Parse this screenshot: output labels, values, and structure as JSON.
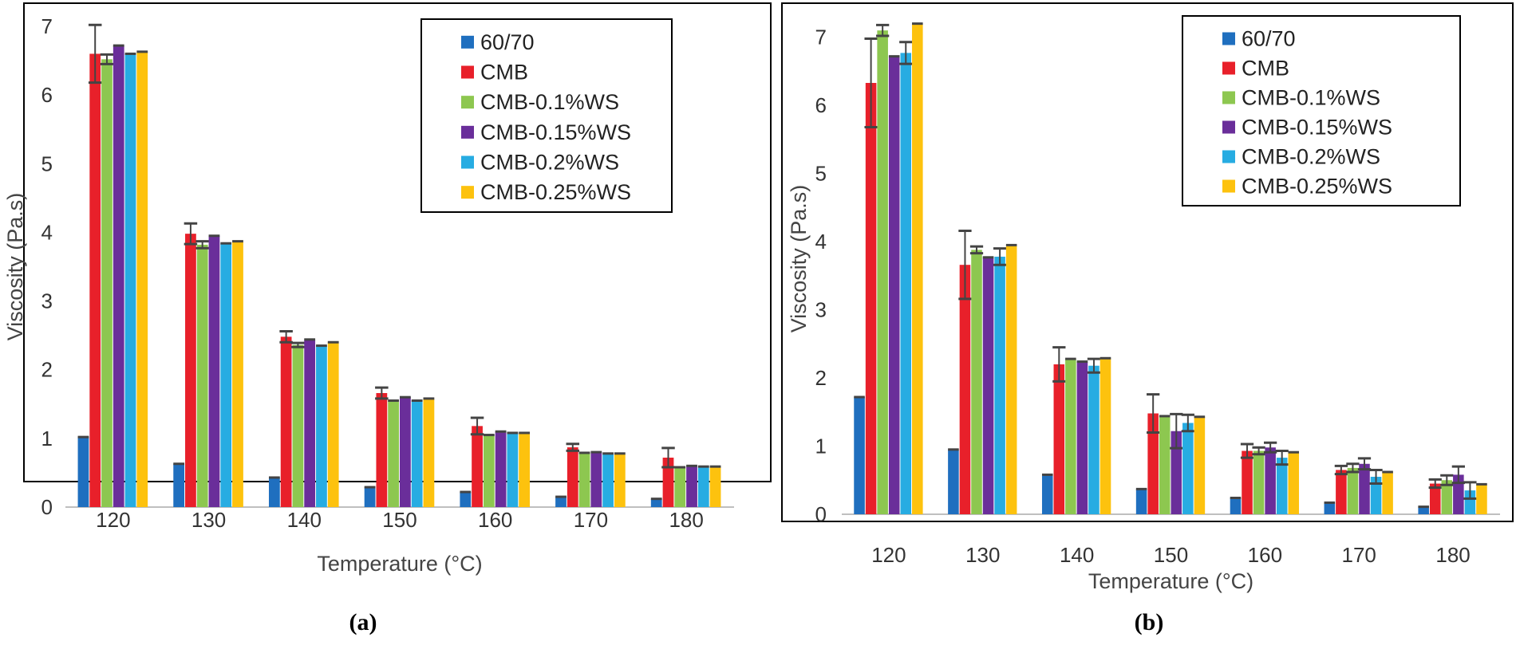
{
  "colors": {
    "60/70": "#1f6fbf",
    "CMB": "#e8202a",
    "CMB-0.1%WS": "#8dc750",
    "CMB-0.15%WS": "#6a2e9a",
    "CMB-0.2%WS": "#27ace2",
    "CMB-0.25%WS": "#fdc20e",
    "error_bar": "#444444"
  },
  "chart_data": [
    {
      "type": "bar",
      "caption": "(a)",
      "xlabel": "Temperature (°C)",
      "ylabel": "Viscosity (Pa.s)",
      "ylim": [
        0,
        7
      ],
      "yticks": [
        "0",
        "1",
        "2",
        "3",
        "4",
        "5",
        "6",
        "7"
      ],
      "categories": [
        "120",
        "130",
        "140",
        "150",
        "160",
        "170",
        "180"
      ],
      "legend_position": "top-right",
      "series": [
        {
          "name": "60/70",
          "values": [
            1.02,
            0.63,
            0.43,
            0.29,
            0.22,
            0.15,
            0.12
          ],
          "errors": [
            0.0,
            0.0,
            0.0,
            0.0,
            0.0,
            0.0,
            0.0
          ]
        },
        {
          "name": "CMB",
          "values": [
            6.6,
            3.98,
            2.48,
            1.66,
            1.18,
            0.87,
            0.72
          ],
          "errors": [
            0.42,
            0.15,
            0.08,
            0.08,
            0.12,
            0.05,
            0.14
          ]
        },
        {
          "name": "CMB-0.1%WS",
          "values": [
            6.52,
            3.82,
            2.36,
            1.55,
            1.05,
            0.79,
            0.58
          ],
          "errors": [
            0.07,
            0.05,
            0.03,
            0.0,
            0.0,
            0.0,
            0.0
          ]
        },
        {
          "name": "CMB-0.15%WS",
          "values": [
            6.72,
            3.95,
            2.44,
            1.6,
            1.1,
            0.8,
            0.6
          ],
          "errors": [
            0.0,
            0.0,
            0.0,
            0.0,
            0.0,
            0.0,
            0.0
          ]
        },
        {
          "name": "CMB-0.2%WS",
          "values": [
            6.6,
            3.84,
            2.35,
            1.55,
            1.08,
            0.78,
            0.59
          ],
          "errors": [
            0.0,
            0.0,
            0.0,
            0.0,
            0.0,
            0.0,
            0.0
          ]
        },
        {
          "name": "CMB-0.25%WS",
          "values": [
            6.63,
            3.87,
            2.4,
            1.58,
            1.08,
            0.78,
            0.59
          ],
          "errors": [
            0.0,
            0.0,
            0.0,
            0.0,
            0.0,
            0.0,
            0.0
          ]
        }
      ]
    },
    {
      "type": "bar",
      "caption": "(b)",
      "xlabel": "Temperature (°C)",
      "ylabel": "Viscosity (Pa.s)",
      "ylim": [
        0,
        7.5
      ],
      "yticks": [
        "0",
        "1",
        "2",
        "3",
        "4",
        "5",
        "6",
        "7"
      ],
      "categories": [
        "120",
        "130",
        "140",
        "150",
        "160",
        "170",
        "180"
      ],
      "legend_position": "top-right",
      "series": [
        {
          "name": "60/70",
          "values": [
            1.72,
            0.95,
            0.58,
            0.37,
            0.24,
            0.17,
            0.11
          ],
          "errors": [
            0.0,
            0.0,
            0.0,
            0.0,
            0.0,
            0.0,
            0.0
          ]
        },
        {
          "name": "CMB",
          "values": [
            6.33,
            3.66,
            2.2,
            1.48,
            0.93,
            0.65,
            0.45
          ],
          "errors": [
            0.65,
            0.5,
            0.25,
            0.28,
            0.1,
            0.06,
            0.06
          ]
        },
        {
          "name": "CMB-0.1%WS",
          "values": [
            7.1,
            3.88,
            2.28,
            1.44,
            0.93,
            0.68,
            0.5
          ],
          "errors": [
            0.08,
            0.05,
            0.0,
            0.0,
            0.05,
            0.06,
            0.07
          ]
        },
        {
          "name": "CMB-0.15%WS",
          "values": [
            6.72,
            3.77,
            2.24,
            1.22,
            0.98,
            0.74,
            0.58
          ],
          "errors": [
            0.0,
            0.0,
            0.0,
            0.25,
            0.07,
            0.08,
            0.12
          ]
        },
        {
          "name": "CMB-0.2%WS",
          "values": [
            6.77,
            3.78,
            2.18,
            1.34,
            0.83,
            0.55,
            0.35
          ],
          "errors": [
            0.16,
            0.12,
            0.1,
            0.12,
            0.1,
            0.1,
            0.12
          ]
        },
        {
          "name": "CMB-0.25%WS",
          "values": [
            7.2,
            3.95,
            2.29,
            1.43,
            0.91,
            0.62,
            0.44
          ],
          "errors": [
            0.0,
            0.0,
            0.0,
            0.0,
            0.0,
            0.0,
            0.0
          ]
        }
      ]
    }
  ]
}
